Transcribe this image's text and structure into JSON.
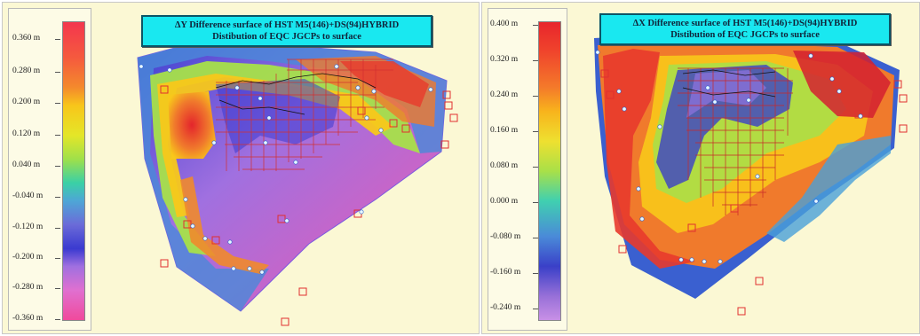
{
  "panels": [
    {
      "title_line1": "ΔY Difference surface of HST M5(146)+DS(94)HYBRID",
      "title_line2": "Distibution of  EQC JGCPs to surface",
      "legend_ticks": [
        "0.360 m",
        "0.280 m",
        "0.200 m",
        "0.120 m",
        "0.040 m",
        "-0.040 m",
        "-0.120 m",
        "-0.200 m",
        "-0.280 m",
        "-0.360 m"
      ]
    },
    {
      "title_line1": "ΔX Difference surface of HST M5(146)+DS(94)HYBRID",
      "title_line2": "Distibution of  EQC JGCPs to surface",
      "legend_ticks": [
        "0.400 m",
        "0.320 m",
        "0.240 m",
        "0.160 m",
        "0.080 m",
        "0.000 m",
        "-0.080 m",
        "-0.160 m",
        "-0.240 m"
      ]
    }
  ],
  "colors": {
    "panel_bg": "#fbf8d4",
    "title_bg": "#19e8f0",
    "gcp_marker": "#e03030"
  }
}
